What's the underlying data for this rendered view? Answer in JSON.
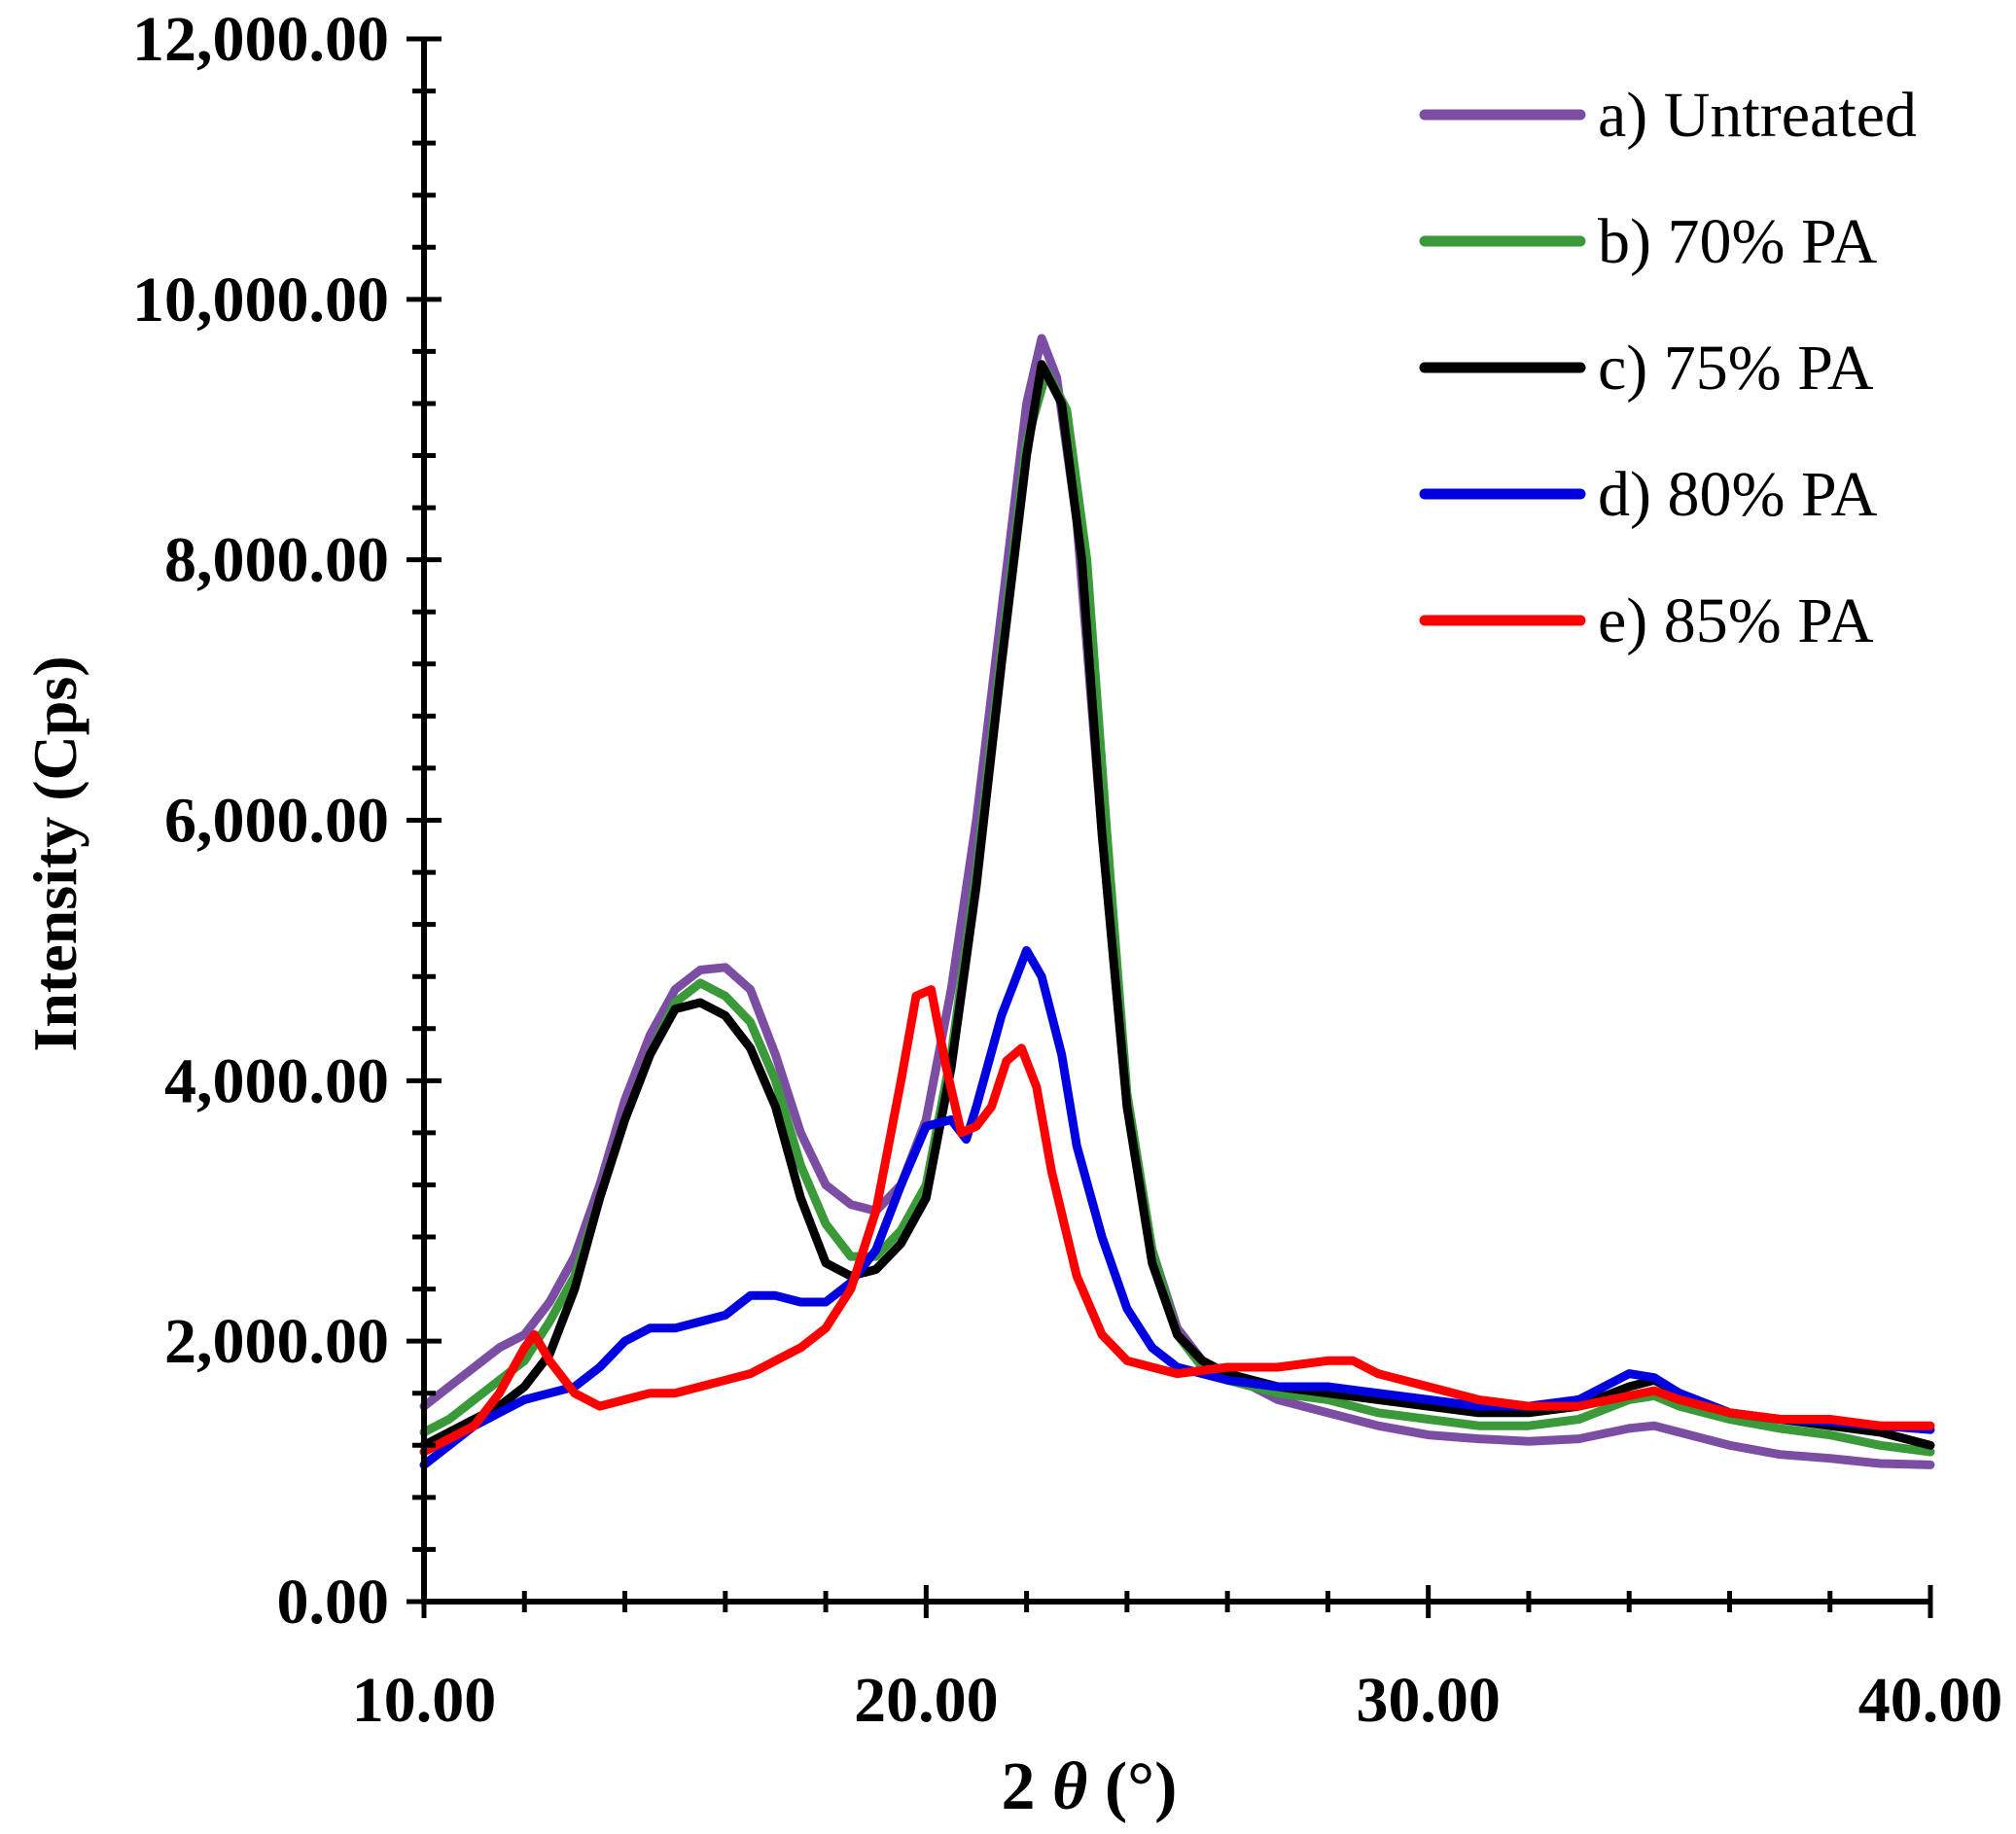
{
  "chart_data": {
    "type": "line",
    "title": "",
    "xlabel": "2 θ (°)",
    "xlabel_parts": {
      "prefix": "2",
      "symbol": "θ",
      "suffix": "(°)"
    },
    "ylabel": "Intensity (Cps)",
    "xlim": [
      10,
      40
    ],
    "ylim": [
      0,
      12000
    ],
    "x_ticks": [
      10,
      20,
      30,
      40
    ],
    "x_tick_labels": [
      "10.00",
      "20.00",
      "30.00",
      "40.00"
    ],
    "y_ticks": [
      0,
      2000,
      4000,
      6000,
      8000,
      10000,
      12000
    ],
    "y_tick_labels": [
      "0.00",
      "2,000.00",
      "4,000.00",
      "6,000.00",
      "8,000.00",
      "10,000.00",
      "12,000.00"
    ],
    "grid": false,
    "legend_position": "top-right",
    "series": [
      {
        "name": "a) Untreated",
        "color": "#7b4ea3",
        "points": [
          [
            10,
            1500
          ],
          [
            10.5,
            1650
          ],
          [
            11,
            1800
          ],
          [
            11.5,
            1950
          ],
          [
            12,
            2050
          ],
          [
            12.5,
            2300
          ],
          [
            13,
            2650
          ],
          [
            13.5,
            3200
          ],
          [
            14,
            3850
          ],
          [
            14.5,
            4350
          ],
          [
            15,
            4700
          ],
          [
            15.5,
            4850
          ],
          [
            16,
            4870
          ],
          [
            16.5,
            4700
          ],
          [
            17,
            4200
          ],
          [
            17.5,
            3600
          ],
          [
            18,
            3200
          ],
          [
            18.5,
            3050
          ],
          [
            19,
            3000
          ],
          [
            19.5,
            3200
          ],
          [
            20,
            3700
          ],
          [
            20.5,
            4700
          ],
          [
            21,
            6000
          ],
          [
            21.5,
            7600
          ],
          [
            22,
            9200
          ],
          [
            22.3,
            9700
          ],
          [
            22.6,
            9400
          ],
          [
            23,
            8300
          ],
          [
            23.5,
            5900
          ],
          [
            24,
            3800
          ],
          [
            24.5,
            2700
          ],
          [
            25,
            2100
          ],
          [
            25.5,
            1850
          ],
          [
            26,
            1750
          ],
          [
            27,
            1550
          ],
          [
            28,
            1450
          ],
          [
            29,
            1350
          ],
          [
            30,
            1280
          ],
          [
            31,
            1250
          ],
          [
            32,
            1230
          ],
          [
            33,
            1250
          ],
          [
            34,
            1330
          ],
          [
            34.5,
            1350
          ],
          [
            35,
            1300
          ],
          [
            36,
            1200
          ],
          [
            37,
            1130
          ],
          [
            38,
            1100
          ],
          [
            39,
            1060
          ],
          [
            40,
            1050
          ]
        ]
      },
      {
        "name": "b) 70% PA",
        "color": "#3a9a3a",
        "points": [
          [
            10,
            1300
          ],
          [
            10.5,
            1400
          ],
          [
            11,
            1550
          ],
          [
            11.5,
            1700
          ],
          [
            12,
            1850
          ],
          [
            12.5,
            2150
          ],
          [
            13,
            2500
          ],
          [
            13.5,
            3100
          ],
          [
            14,
            3700
          ],
          [
            14.5,
            4200
          ],
          [
            15,
            4600
          ],
          [
            15.5,
            4750
          ],
          [
            16,
            4650
          ],
          [
            16.5,
            4450
          ],
          [
            17,
            4000
          ],
          [
            17.5,
            3350
          ],
          [
            18,
            2900
          ],
          [
            18.5,
            2650
          ],
          [
            19,
            2650
          ],
          [
            19.5,
            2850
          ],
          [
            20,
            3200
          ],
          [
            20.5,
            4200
          ],
          [
            21,
            5600
          ],
          [
            21.5,
            7300
          ],
          [
            22,
            8900
          ],
          [
            22.4,
            9450
          ],
          [
            22.8,
            9150
          ],
          [
            23.2,
            8000
          ],
          [
            23.6,
            5900
          ],
          [
            24,
            3900
          ],
          [
            24.5,
            2700
          ],
          [
            25,
            2050
          ],
          [
            25.5,
            1800
          ],
          [
            26,
            1700
          ],
          [
            27,
            1600
          ],
          [
            28,
            1550
          ],
          [
            29,
            1450
          ],
          [
            30,
            1400
          ],
          [
            31,
            1350
          ],
          [
            32,
            1350
          ],
          [
            33,
            1400
          ],
          [
            34,
            1550
          ],
          [
            34.5,
            1580
          ],
          [
            35,
            1500
          ],
          [
            36,
            1400
          ],
          [
            37,
            1330
          ],
          [
            38,
            1280
          ],
          [
            39,
            1200
          ],
          [
            40,
            1150
          ]
        ]
      },
      {
        "name": "c) 75% PA",
        "color": "#000000",
        "points": [
          [
            10,
            1200
          ],
          [
            10.5,
            1300
          ],
          [
            11,
            1400
          ],
          [
            11.5,
            1500
          ],
          [
            12,
            1650
          ],
          [
            12.5,
            1900
          ],
          [
            13,
            2400
          ],
          [
            13.5,
            3100
          ],
          [
            14,
            3700
          ],
          [
            14.5,
            4200
          ],
          [
            15,
            4550
          ],
          [
            15.5,
            4600
          ],
          [
            16,
            4500
          ],
          [
            16.5,
            4250
          ],
          [
            17,
            3800
          ],
          [
            17.5,
            3100
          ],
          [
            18,
            2600
          ],
          [
            18.5,
            2500
          ],
          [
            19,
            2550
          ],
          [
            19.5,
            2750
          ],
          [
            20,
            3100
          ],
          [
            20.5,
            4100
          ],
          [
            21,
            5500
          ],
          [
            21.5,
            7200
          ],
          [
            22,
            8800
          ],
          [
            22.3,
            9500
          ],
          [
            22.7,
            9200
          ],
          [
            23.1,
            8000
          ],
          [
            23.5,
            5900
          ],
          [
            24,
            3800
          ],
          [
            24.5,
            2600
          ],
          [
            25,
            2050
          ],
          [
            25.5,
            1850
          ],
          [
            26,
            1750
          ],
          [
            27,
            1650
          ],
          [
            28,
            1600
          ],
          [
            29,
            1550
          ],
          [
            30,
            1500
          ],
          [
            31,
            1450
          ],
          [
            32,
            1450
          ],
          [
            33,
            1500
          ],
          [
            34,
            1650
          ],
          [
            34.5,
            1700
          ],
          [
            35,
            1600
          ],
          [
            36,
            1450
          ],
          [
            37,
            1400
          ],
          [
            38,
            1350
          ],
          [
            39,
            1300
          ],
          [
            40,
            1200
          ]
        ]
      },
      {
        "name": "d) 80% PA",
        "color": "#0000e0",
        "points": [
          [
            10,
            1050
          ],
          [
            10.5,
            1200
          ],
          [
            11,
            1350
          ],
          [
            11.5,
            1450
          ],
          [
            12,
            1550
          ],
          [
            12.5,
            1600
          ],
          [
            13,
            1650
          ],
          [
            13.5,
            1800
          ],
          [
            14,
            2000
          ],
          [
            14.5,
            2100
          ],
          [
            15,
            2100
          ],
          [
            15.5,
            2150
          ],
          [
            16,
            2200
          ],
          [
            16.5,
            2350
          ],
          [
            17,
            2350
          ],
          [
            17.5,
            2300
          ],
          [
            18,
            2300
          ],
          [
            18.5,
            2450
          ],
          [
            19,
            2700
          ],
          [
            19.5,
            3200
          ],
          [
            20,
            3650
          ],
          [
            20.5,
            3700
          ],
          [
            20.8,
            3550
          ],
          [
            21,
            3800
          ],
          [
            21.5,
            4500
          ],
          [
            22,
            5000
          ],
          [
            22.3,
            4800
          ],
          [
            22.7,
            4200
          ],
          [
            23,
            3500
          ],
          [
            23.5,
            2800
          ],
          [
            24,
            2250
          ],
          [
            24.5,
            1950
          ],
          [
            25,
            1800
          ],
          [
            25.5,
            1750
          ],
          [
            26,
            1700
          ],
          [
            27,
            1650
          ],
          [
            28,
            1650
          ],
          [
            29,
            1600
          ],
          [
            30,
            1550
          ],
          [
            31,
            1500
          ],
          [
            32,
            1500
          ],
          [
            33,
            1550
          ],
          [
            34,
            1750
          ],
          [
            34.5,
            1720
          ],
          [
            35,
            1600
          ],
          [
            36,
            1450
          ],
          [
            37,
            1400
          ],
          [
            38,
            1380
          ],
          [
            39,
            1350
          ],
          [
            40,
            1320
          ]
        ]
      },
      {
        "name": "e) 85% PA",
        "color": "#ff0000",
        "points": [
          [
            10,
            1150
          ],
          [
            10.5,
            1250
          ],
          [
            11,
            1350
          ],
          [
            11.5,
            1600
          ],
          [
            12,
            1950
          ],
          [
            12.2,
            2050
          ],
          [
            12.5,
            1850
          ],
          [
            13,
            1600
          ],
          [
            13.5,
            1500
          ],
          [
            14,
            1550
          ],
          [
            14.5,
            1600
          ],
          [
            15,
            1600
          ],
          [
            15.5,
            1650
          ],
          [
            16,
            1700
          ],
          [
            16.5,
            1750
          ],
          [
            17,
            1850
          ],
          [
            17.5,
            1950
          ],
          [
            18,
            2100
          ],
          [
            18.5,
            2400
          ],
          [
            19,
            3000
          ],
          [
            19.5,
            4000
          ],
          [
            19.8,
            4650
          ],
          [
            20.1,
            4700
          ],
          [
            20.4,
            4100
          ],
          [
            20.7,
            3600
          ],
          [
            21,
            3650
          ],
          [
            21.3,
            3800
          ],
          [
            21.6,
            4150
          ],
          [
            21.9,
            4250
          ],
          [
            22.2,
            3950
          ],
          [
            22.5,
            3300
          ],
          [
            23,
            2500
          ],
          [
            23.5,
            2050
          ],
          [
            24,
            1850
          ],
          [
            24.5,
            1800
          ],
          [
            25,
            1750
          ],
          [
            26,
            1800
          ],
          [
            27,
            1800
          ],
          [
            28,
            1850
          ],
          [
            28.5,
            1850
          ],
          [
            29,
            1750
          ],
          [
            30,
            1650
          ],
          [
            31,
            1550
          ],
          [
            32,
            1500
          ],
          [
            33,
            1500
          ],
          [
            34,
            1580
          ],
          [
            34.5,
            1620
          ],
          [
            35,
            1550
          ],
          [
            36,
            1450
          ],
          [
            37,
            1400
          ],
          [
            38,
            1400
          ],
          [
            39,
            1350
          ],
          [
            40,
            1350
          ]
        ]
      }
    ]
  }
}
